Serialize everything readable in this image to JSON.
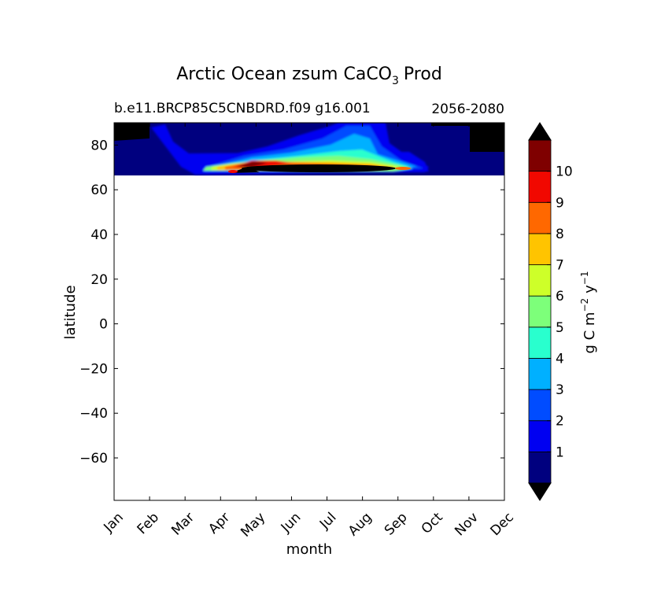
{
  "chart_data": {
    "type": "heatmap",
    "title": "Arctic Ocean zsum CaCO",
    "title_subscript": "3",
    "title_suffix": "Prod",
    "subtitle_left": "b.e11.BRCP85C5CNBDRD.f09 g16.001",
    "subtitle_right": "2056-2080",
    "xlabel": "month",
    "ylabel": "latitude",
    "x_ticks": [
      "Jan",
      "Feb",
      "Mar",
      "Apr",
      "May",
      "Jun",
      "Jul",
      "Aug",
      "Sep",
      "Oct",
      "Nov",
      "Dec"
    ],
    "y_ticks": [
      80,
      60,
      40,
      20,
      0,
      -20,
      -40,
      -60
    ],
    "y_tick_labels": [
      "80",
      "60",
      "40",
      "20",
      "0",
      "−20",
      "−40",
      "−60"
    ],
    "ylim": [
      -79,
      90
    ],
    "colorbar": {
      "label": "g C m",
      "label_exp1": "−2",
      "label_mid": "y",
      "label_exp2": "−1",
      "tick_labels": [
        "1",
        "2",
        "3",
        "4",
        "5",
        "6",
        "7",
        "8",
        "9",
        "10"
      ],
      "levels": [
        0,
        1,
        2,
        3,
        4,
        5,
        6,
        7,
        8,
        9,
        10,
        11
      ],
      "colors": [
        "#00007f",
        "#0000f1",
        "#004cff",
        "#00b0ff",
        "#29ffce",
        "#7dff7a",
        "#ceff29",
        "#ffc400",
        "#ff6800",
        "#f10800",
        "#7f0000"
      ],
      "extend_under": "#000000",
      "extend_over": "#000000"
    },
    "field": {
      "lat_range": [
        66.5,
        90
      ],
      "description_levels": "contour bands near 68-76N strongest May-Sep"
    },
    "grid": false
  }
}
